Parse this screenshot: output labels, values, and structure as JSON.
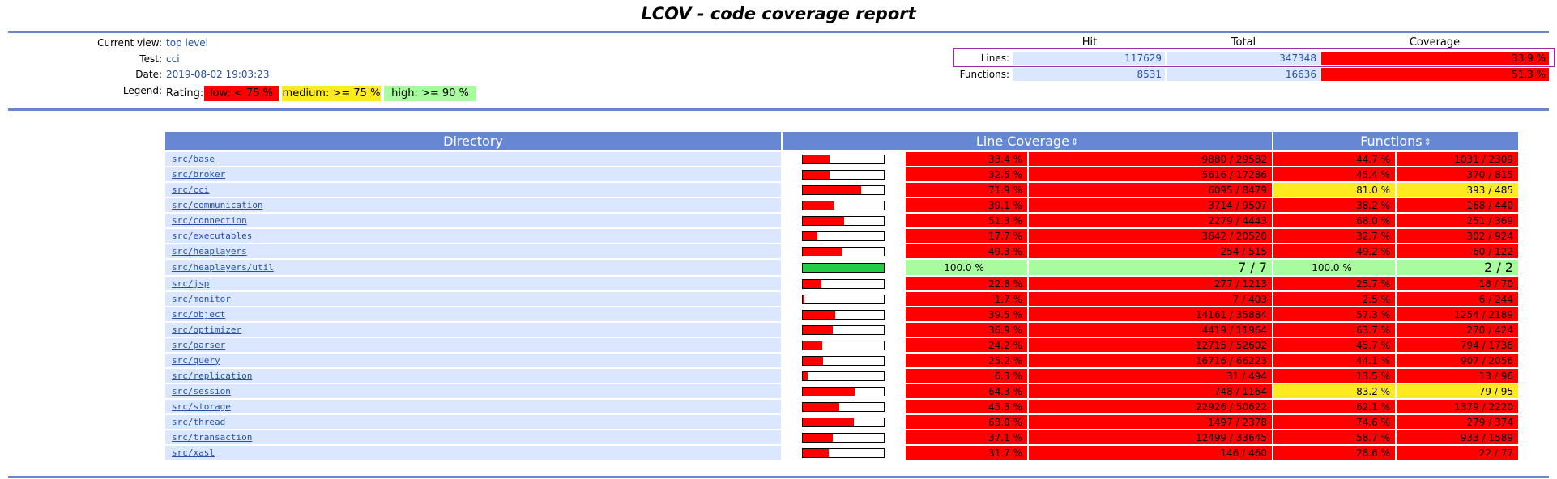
{
  "title": "LCOV - code coverage report",
  "header": {
    "current_view_label": "Current view:",
    "current_view": "top level",
    "test_label": "Test:",
    "test": "cci",
    "date_label": "Date:",
    "date": "2019-08-02 19:03:23",
    "legend_label": "Legend:",
    "rating_label": "Rating:",
    "legend_low": "low: < 75 %",
    "legend_medium": "medium: >= 75 %",
    "legend_high": "high: >= 90 %"
  },
  "summary": {
    "col_hit": "Hit",
    "col_total": "Total",
    "col_coverage": "Coverage",
    "lines_label": "Lines:",
    "lines_hit": "117629",
    "lines_total": "347348",
    "lines_coverage": "33.9 %",
    "functions_label": "Functions:",
    "functions_hit": "8531",
    "functions_total": "16636",
    "functions_coverage": "51.3 %"
  },
  "table": {
    "col_directory": "Directory",
    "col_line_coverage": "Line Coverage",
    "col_functions": "Functions",
    "sort_icon": "⇕"
  },
  "colors": {
    "low": "#ff0000",
    "medium": "#ffea20",
    "high": "#a7fc9d",
    "bar_high": "#22cc44",
    "header_blue": "#6688d4",
    "row_blue": "#dae7fe"
  },
  "chart_data": {
    "type": "table",
    "title": "LCOV - code coverage report",
    "columns": [
      "Directory",
      "Line Coverage %",
      "Lines hit / total",
      "Functions %",
      "Functions hit / total"
    ],
    "rows": [
      {
        "dir": "src/base",
        "line_pct": 33.4,
        "lines": "9880 / 29582",
        "fn_pct": 44.7,
        "fns": "1031 / 2309"
      },
      {
        "dir": "src/broker",
        "line_pct": 32.5,
        "lines": "5616 / 17286",
        "fn_pct": 45.4,
        "fns": "370 / 815"
      },
      {
        "dir": "src/cci",
        "line_pct": 71.9,
        "lines": "6095 / 8479",
        "fn_pct": 81.0,
        "fns": "393 / 485"
      },
      {
        "dir": "src/communication",
        "line_pct": 39.1,
        "lines": "3714 / 9507",
        "fn_pct": 38.2,
        "fns": "168 / 440"
      },
      {
        "dir": "src/connection",
        "line_pct": 51.3,
        "lines": "2279 / 4443",
        "fn_pct": 68.0,
        "fns": "251 / 369"
      },
      {
        "dir": "src/executables",
        "line_pct": 17.7,
        "lines": "3642 / 20520",
        "fn_pct": 32.7,
        "fns": "302 / 924"
      },
      {
        "dir": "src/heaplayers",
        "line_pct": 49.3,
        "lines": "254 / 515",
        "fn_pct": 49.2,
        "fns": "60 / 122"
      },
      {
        "dir": "src/heaplayers/util",
        "line_pct": 100.0,
        "lines": "7 / 7",
        "fn_pct": 100.0,
        "fns": "2 / 2"
      },
      {
        "dir": "src/jsp",
        "line_pct": 22.8,
        "lines": "277 / 1213",
        "fn_pct": 25.7,
        "fns": "18 / 70"
      },
      {
        "dir": "src/monitor",
        "line_pct": 1.7,
        "lines": "7 / 403",
        "fn_pct": 2.5,
        "fns": "6 / 244"
      },
      {
        "dir": "src/object",
        "line_pct": 39.5,
        "lines": "14161 / 35884",
        "fn_pct": 57.3,
        "fns": "1254 / 2189"
      },
      {
        "dir": "src/optimizer",
        "line_pct": 36.9,
        "lines": "4419 / 11964",
        "fn_pct": 63.7,
        "fns": "270 / 424"
      },
      {
        "dir": "src/parser",
        "line_pct": 24.2,
        "lines": "12715 / 52602",
        "fn_pct": 45.7,
        "fns": "794 / 1736"
      },
      {
        "dir": "src/query",
        "line_pct": 25.2,
        "lines": "16716 / 66223",
        "fn_pct": 44.1,
        "fns": "907 / 2056"
      },
      {
        "dir": "src/replication",
        "line_pct": 6.3,
        "lines": "31 / 494",
        "fn_pct": 13.5,
        "fns": "13 / 96"
      },
      {
        "dir": "src/session",
        "line_pct": 64.3,
        "lines": "748 / 1164",
        "fn_pct": 83.2,
        "fns": "79 / 95"
      },
      {
        "dir": "src/storage",
        "line_pct": 45.3,
        "lines": "22926 / 50622",
        "fn_pct": 62.1,
        "fns": "1379 / 2220"
      },
      {
        "dir": "src/thread",
        "line_pct": 63.0,
        "lines": "1497 / 2378",
        "fn_pct": 74.6,
        "fns": "279 / 374"
      },
      {
        "dir": "src/transaction",
        "line_pct": 37.1,
        "lines": "12499 / 33645",
        "fn_pct": 58.7,
        "fns": "933 / 1589"
      },
      {
        "dir": "src/xasl",
        "line_pct": 31.7,
        "lines": "146 / 460",
        "fn_pct": 28.6,
        "fns": "22 / 77"
      }
    ]
  }
}
